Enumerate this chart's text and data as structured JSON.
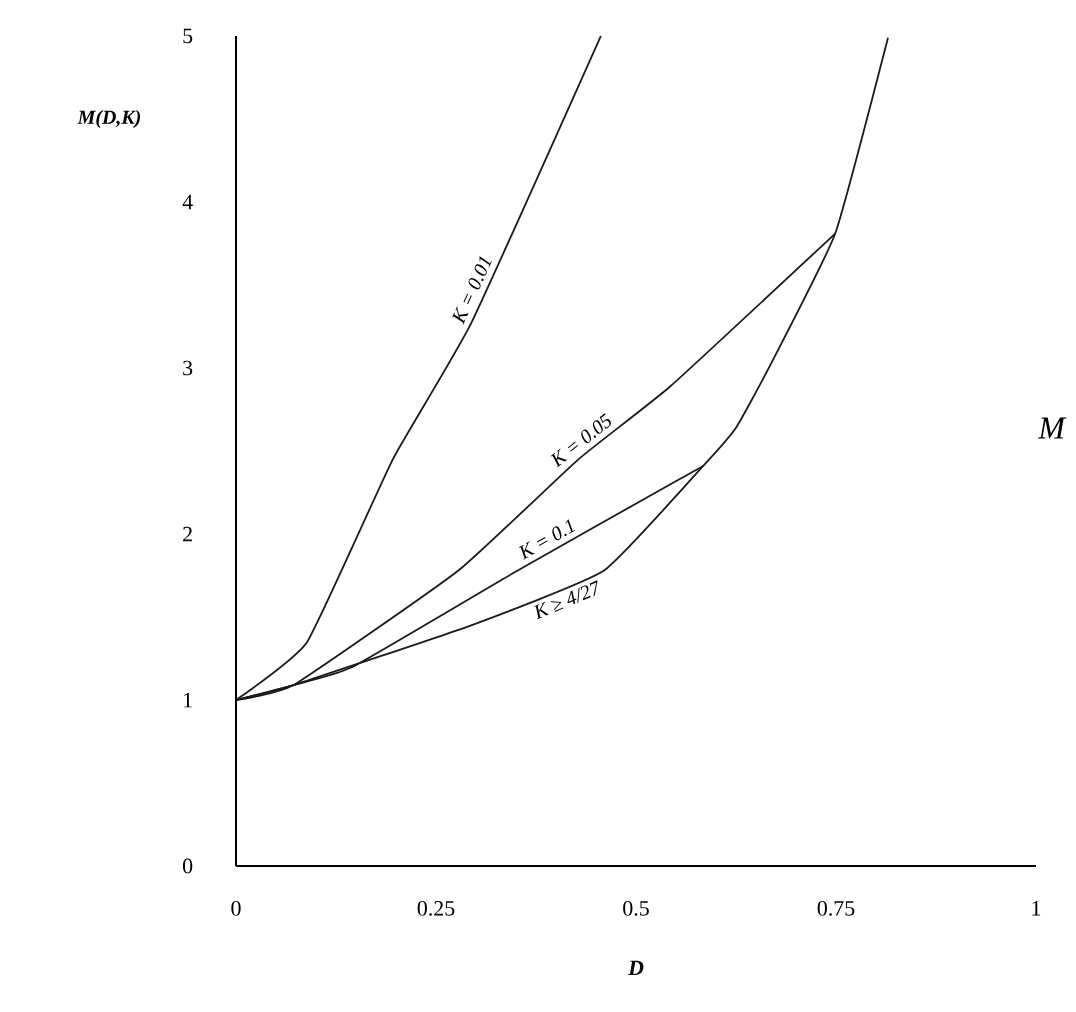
{
  "chart_data": {
    "type": "line",
    "xlabel": "D",
    "ylabel": "M(D,K)",
    "xlim": [
      0,
      1
    ],
    "ylim": [
      0,
      5
    ],
    "xticks": [
      0,
      0.25,
      0.5,
      0.75,
      1
    ],
    "yticks": [
      0,
      1,
      2,
      3,
      4,
      5
    ],
    "grid": false,
    "marker": "none",
    "line_style": "solid",
    "series": [
      {
        "name": "K = 0.01",
        "color": "#1a1a1a",
        "x": [
          0,
          0.089,
          0.196,
          0.294,
          0.456
        ],
        "values": [
          1,
          1.35,
          2.45,
          3.27,
          5.0
        ]
      },
      {
        "name": "K = 0.05",
        "color": "#1a1a1a",
        "x": [
          0,
          0.072,
          0.278,
          0.428,
          0.543,
          0.749
        ],
        "values": [
          1,
          1.09,
          1.78,
          2.45,
          2.89,
          3.81
        ]
      },
      {
        "name": "K = 0.1",
        "color": "#1a1a1a",
        "x": [
          0,
          0.072,
          0.146,
          0.345,
          0.543,
          0.584
        ],
        "values": [
          1,
          1.09,
          1.2,
          1.76,
          2.3,
          2.41
        ]
      },
      {
        "name": "K ≥ 4/27",
        "color": "#1a1a1a",
        "x": [
          0,
          0.072,
          0.294,
          0.46,
          0.584,
          0.625,
          0.667,
          0.749,
          0.815
        ],
        "values": [
          1,
          1.09,
          1.45,
          1.78,
          2.41,
          2.64,
          3.01,
          3.81,
          4.99
        ]
      }
    ],
    "annotations": [
      "M"
    ]
  }
}
